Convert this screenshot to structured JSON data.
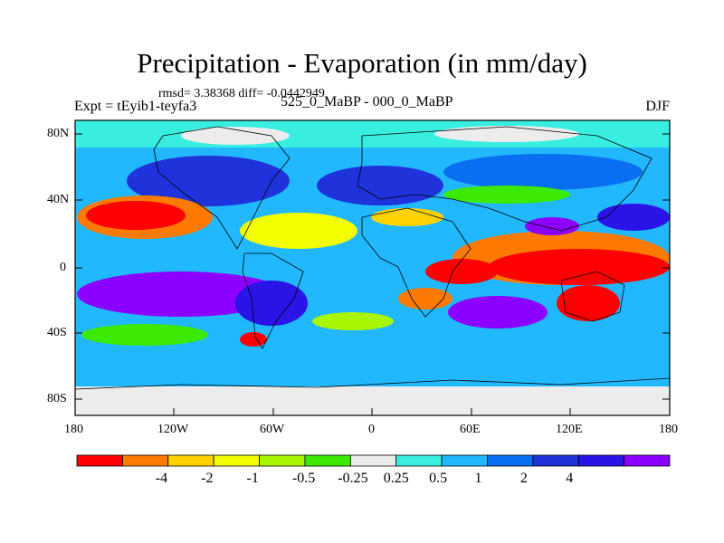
{
  "title": "Precipitation - Evaporation (in mm/day)",
  "stats_text": "rmsd= 3.38368 diff= -0.0442949",
  "experiment_label": "Expt = tEyib1-teyfa3",
  "difference_label": "525_0_MaBP - 000_0_MaBP",
  "season": "DJF",
  "lat_ticks": [
    "80N",
    "40N",
    "0",
    "40S",
    "80S"
  ],
  "lon_ticks": [
    "180",
    "120W",
    "60W",
    "0",
    "60E",
    "120E",
    "180"
  ],
  "colorbar": {
    "colors": [
      "#ff0000",
      "#ff7a00",
      "#ffd200",
      "#f2ff00",
      "#a8f500",
      "#3cea00",
      "#ececec",
      "#38eee0",
      "#22b8ff",
      "#0a6ef0",
      "#1e33dc",
      "#2a14e8",
      "#8c00ff"
    ],
    "labels": [
      "-4",
      "-2",
      "-1",
      "-0.5",
      "-0.25",
      "0.25",
      "0.5",
      "1",
      "2",
      "4"
    ]
  }
}
